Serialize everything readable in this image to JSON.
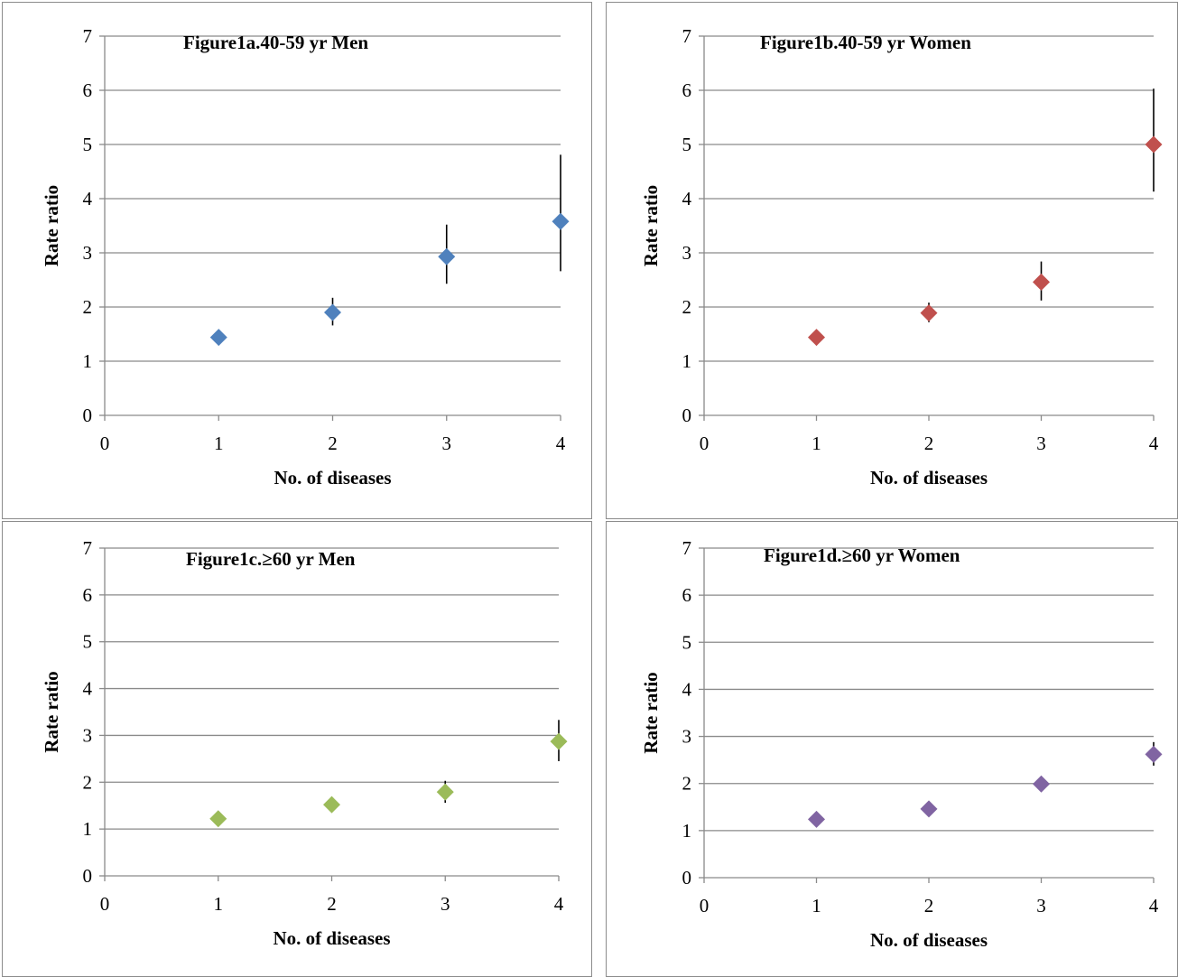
{
  "chart_data": [
    {
      "type": "scatter",
      "title": "Figure1a.40-59 yr Men",
      "xlabel": "No. of diseases",
      "ylabel": "Rate ratio",
      "xlim": [
        0,
        4
      ],
      "ylim": [
        0,
        7
      ],
      "xticks": [
        0,
        1,
        2,
        3,
        4
      ],
      "yticks": [
        0,
        1,
        2,
        3,
        4,
        5,
        6,
        7
      ],
      "grid": "horizontal",
      "color": "#4f81bd",
      "x": [
        1,
        2,
        3,
        4
      ],
      "y": [
        1.44,
        1.9,
        2.93,
        3.58
      ],
      "err_low": [
        1.4,
        1.66,
        2.43,
        2.66
      ],
      "err_high": [
        1.49,
        2.17,
        3.52,
        4.81
      ]
    },
    {
      "type": "scatter",
      "title": "Figure1b.40-59 yr Women",
      "xlabel": "No. of diseases",
      "ylabel": "Rate ratio",
      "xlim": [
        0,
        4
      ],
      "ylim": [
        0,
        7
      ],
      "xticks": [
        0,
        1,
        2,
        3,
        4
      ],
      "yticks": [
        0,
        1,
        2,
        3,
        4,
        5,
        6,
        7
      ],
      "grid": "horizontal",
      "color": "#c0504d",
      "x": [
        1,
        2,
        3,
        4
      ],
      "y": [
        1.44,
        1.89,
        2.46,
        5.0
      ],
      "err_low": [
        1.39,
        1.72,
        2.12,
        4.13
      ],
      "err_high": [
        1.5,
        2.08,
        2.84,
        6.03
      ]
    },
    {
      "type": "scatter",
      "title": "Figure1c.≥60 yr Men",
      "xlabel": "No. of diseases",
      "ylabel": "Rate ratio",
      "xlim": [
        0,
        4
      ],
      "ylim": [
        0,
        7
      ],
      "xticks": [
        0,
        1,
        2,
        3,
        4
      ],
      "yticks": [
        0,
        1,
        2,
        3,
        4,
        5,
        6,
        7
      ],
      "grid": "horizontal",
      "color": "#9bbb59",
      "x": [
        1,
        2,
        3,
        4
      ],
      "y": [
        1.22,
        1.52,
        1.79,
        2.87
      ],
      "err_low": [
        1.18,
        1.44,
        1.56,
        2.45
      ],
      "err_high": [
        1.27,
        1.6,
        2.03,
        3.33
      ]
    },
    {
      "type": "scatter",
      "title": "Figure1d.≥60 yr Women",
      "xlabel": "No. of diseases",
      "ylabel": "Rate ratio",
      "xlim": [
        0,
        4
      ],
      "ylim": [
        0,
        7
      ],
      "xticks": [
        0,
        1,
        2,
        3,
        4
      ],
      "yticks": [
        0,
        1,
        2,
        3,
        4,
        5,
        6,
        7
      ],
      "grid": "horizontal",
      "color": "#8064a2",
      "x": [
        1,
        2,
        3,
        4
      ],
      "y": [
        1.24,
        1.46,
        1.99,
        2.62
      ],
      "err_low": [
        1.2,
        1.4,
        1.87,
        2.38
      ],
      "err_high": [
        1.28,
        1.53,
        2.11,
        2.88
      ]
    }
  ]
}
